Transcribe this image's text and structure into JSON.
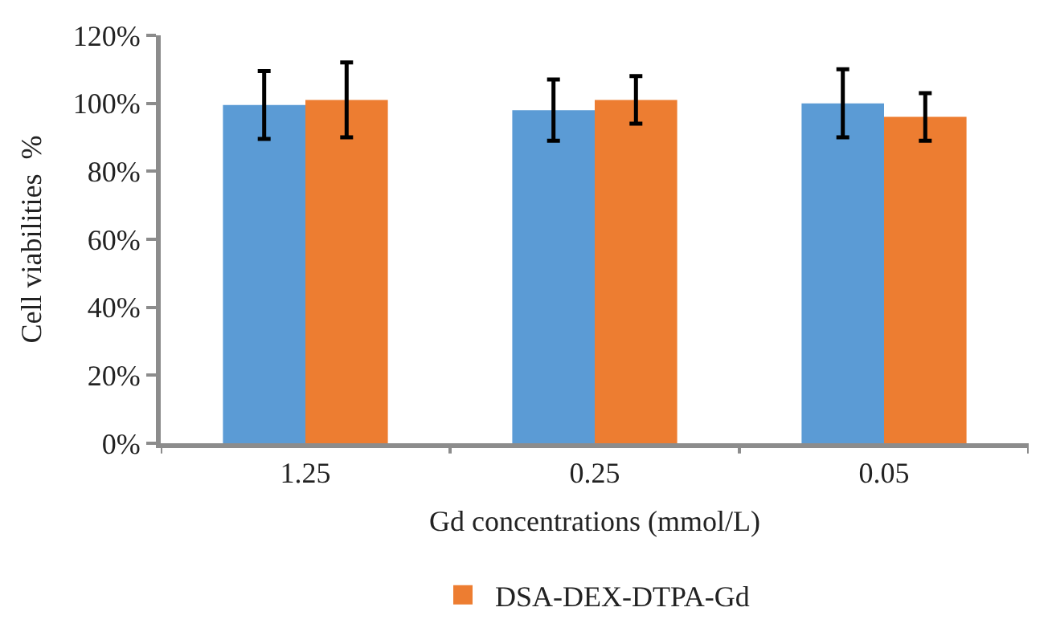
{
  "chart_data": {
    "type": "bar",
    "xlabel": "Gd concentrations (mmol/L)",
    "ylabel": "Cell viabilities  %",
    "categories": [
      "1.25",
      "0.25",
      "0.05"
    ],
    "series": [
      {
        "color": "#5b9bd5",
        "values": [
          99.5,
          98,
          100
        ],
        "errors": [
          10,
          9,
          10
        ]
      },
      {
        "name": "DSA-DEX-DTPA-Gd",
        "color": "#ed7d31",
        "values": [
          101,
          101,
          96
        ],
        "errors": [
          11,
          7,
          7
        ]
      }
    ],
    "ylim": [
      0,
      120
    ],
    "yticks": [
      {
        "value": 0,
        "label": "0%"
      },
      {
        "value": 20,
        "label": "20%"
      },
      {
        "value": 40,
        "label": "40%"
      },
      {
        "value": 60,
        "label": "60%"
      },
      {
        "value": 80,
        "label": "80%"
      },
      {
        "value": 100,
        "label": "100%"
      },
      {
        "value": 120,
        "label": "120%"
      }
    ],
    "legend": "bottom"
  }
}
